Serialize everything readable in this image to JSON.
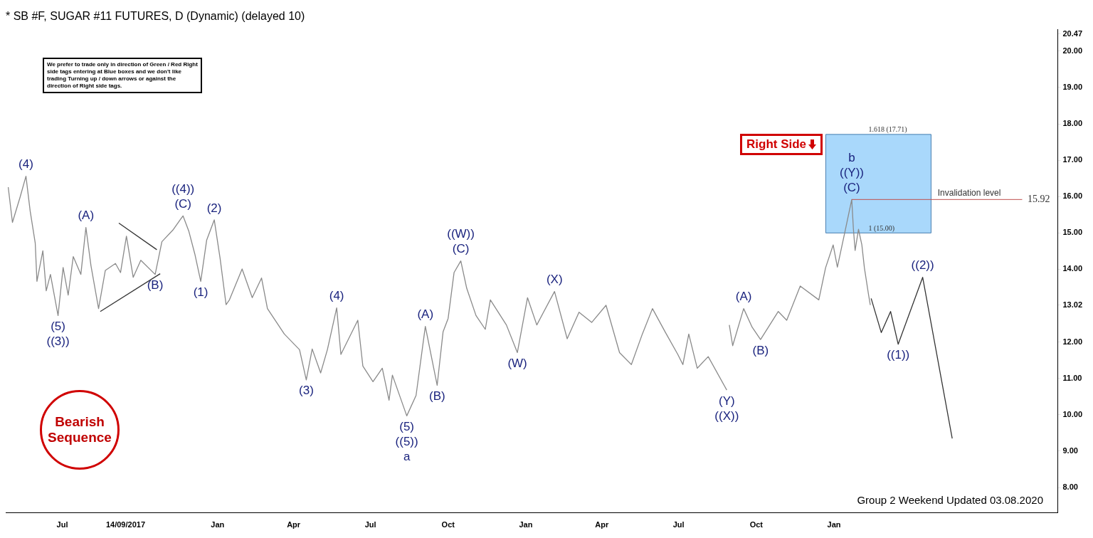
{
  "chart_data": {
    "type": "line",
    "title": "* SB #F, SUGAR #11 FUTURES, D (Dynamic) (delayed 10)",
    "xlim": [
      "2017-04-25",
      "2020-09-22"
    ],
    "xticks": [
      {
        "value": "2017-07-01",
        "label": "Jul"
      },
      {
        "value": "2017-09-14",
        "label": "14/09/2017"
      },
      {
        "value": "2018-01-01",
        "label": "Jan"
      },
      {
        "value": "2018-04-01",
        "label": "Apr"
      },
      {
        "value": "2018-07-01",
        "label": "Jul"
      },
      {
        "value": "2018-10-01",
        "label": "Oct"
      },
      {
        "value": "2019-01-01",
        "label": "Jan"
      },
      {
        "value": "2019-04-01",
        "label": "Apr"
      },
      {
        "value": "2019-07-01",
        "label": "Jul"
      },
      {
        "value": "2019-10-01",
        "label": "Oct"
      },
      {
        "value": "2020-01-01",
        "label": "Jan"
      }
    ],
    "ylim": [
      7.3,
      20.6
    ],
    "yticks": [
      {
        "value": 8,
        "label": "8.00"
      },
      {
        "value": 9,
        "label": "9.00"
      },
      {
        "value": 10,
        "label": "10.00"
      },
      {
        "value": 11,
        "label": "11.00"
      },
      {
        "value": 12,
        "label": "12.00"
      },
      {
        "value": 13.02,
        "label": "13.02"
      },
      {
        "value": 14,
        "label": "14.00"
      },
      {
        "value": 15,
        "label": "15.00"
      },
      {
        "value": 16,
        "label": "16.00"
      },
      {
        "value": 17,
        "label": "17.00"
      },
      {
        "value": 18,
        "label": "18.00"
      },
      {
        "value": 19,
        "label": "19.00"
      },
      {
        "value": 20,
        "label": "20.00"
      },
      {
        "value": 20.47,
        "label": "20.47"
      }
    ],
    "grid": false,
    "legend": false,
    "marker": "none",
    "line_style": "solid",
    "series": [
      {
        "color": "#8a8a8a",
        "x": [
          "2017-04-28",
          "2017-05-03",
          "2017-05-12",
          "2017-05-19",
          "2017-05-24",
          "2017-05-30",
          "2017-06-01",
          "2017-06-08",
          "2017-06-12",
          "2017-06-17",
          "2017-06-26",
          "2017-07-02",
          "2017-07-08",
          "2017-07-14",
          "2017-07-23",
          "2017-07-29",
          "2017-08-04",
          "2017-08-13",
          "2017-08-21",
          "2017-09-02",
          "2017-09-08",
          "2017-09-15",
          "2017-09-23",
          "2017-10-02",
          "2017-10-19",
          "2017-10-27",
          "2017-11-09",
          "2017-11-21",
          "2017-11-28",
          "2017-12-05",
          "2017-12-12",
          "2017-12-19",
          "2017-12-28",
          "2018-01-04",
          "2018-01-11",
          "2018-01-15",
          "2018-01-30",
          "2018-02-11",
          "2018-02-22",
          "2018-03-01",
          "2018-03-21",
          "2018-04-08",
          "2018-04-16",
          "2018-04-23",
          "2018-05-03",
          "2018-05-11",
          "2018-05-22",
          "2018-05-27",
          "2018-06-16",
          "2018-06-22",
          "2018-07-04",
          "2018-07-15",
          "2018-07-23",
          "2018-07-27",
          "2018-08-13",
          "2018-08-24",
          "2018-09-04",
          "2018-09-18",
          "2018-09-25",
          "2018-10-01",
          "2018-10-08",
          "2018-10-16",
          "2018-10-23",
          "2018-11-03",
          "2018-11-14",
          "2018-11-20",
          "2018-12-09",
          "2018-12-22",
          "2019-01-03",
          "2019-01-14",
          "2019-02-04",
          "2019-02-19",
          "2019-03-05",
          "2019-03-20",
          "2019-04-06",
          "2019-04-22",
          "2019-05-06",
          "2019-05-19",
          "2019-05-31",
          "2019-06-15",
          "2019-06-30",
          "2019-07-06",
          "2019-07-13",
          "2019-07-23",
          "2019-08-05",
          "2019-08-27",
          "2019-08-28",
          "2019-08-30",
          "2019-09-03",
          "2019-09-16",
          "2019-09-26",
          "2019-10-06",
          "2019-10-27",
          "2019-11-06",
          "2019-11-22",
          "2019-12-14",
          "2019-12-22",
          "2019-12-31",
          "2020-01-05",
          "2020-01-14",
          "2020-01-22",
          "2020-01-24",
          "2020-01-26",
          "2020-01-30",
          "2020-02-03",
          "2020-02-06",
          "2020-02-11",
          "2020-02-13"
        ],
        "values": [
          16.26,
          15.29,
          15.98,
          16.56,
          15.6,
          14.72,
          13.67,
          14.51,
          13.41,
          13.86,
          12.73,
          14.05,
          13.29,
          14.35,
          13.86,
          15.15,
          14.1,
          12.92,
          13.97,
          14.16,
          13.91,
          14.91,
          13.78,
          14.25,
          13.86,
          14.76,
          15.08,
          15.47,
          15.04,
          14.42,
          13.67,
          14.8,
          15.36,
          14.29,
          13.03,
          13.16,
          14.01,
          13.22,
          13.76,
          12.92,
          12.22,
          11.79,
          10.96,
          11.81,
          11.15,
          11.79,
          12.94,
          11.66,
          12.6,
          11.34,
          10.91,
          11.28,
          10.4,
          11.09,
          9.97,
          10.53,
          12.43,
          10.81,
          12.28,
          12.65,
          13.91,
          14.23,
          13.48,
          12.73,
          12.35,
          13.16,
          12.47,
          11.71,
          13.22,
          12.47,
          13.39,
          12.09,
          12.82,
          12.54,
          13.01,
          11.71,
          11.38,
          12.22,
          12.92,
          12.28,
          11.66,
          11.38,
          12.22,
          11.28,
          11.6,
          10.68,
          null,
          12.47,
          11.9,
          12.92,
          12.41,
          12.07,
          12.84,
          12.6,
          13.54,
          13.16,
          14.04,
          14.67,
          14.06,
          15.04,
          15.92,
          15.1,
          14.52,
          15.1,
          14.67,
          14.04,
          13.29,
          13.02
        ]
      },
      {
        "color": "#333333",
        "x": [
          "2020-02-14",
          "2020-02-26",
          "2020-03-08",
          "2020-03-17",
          "2020-04-15",
          "2020-05-20"
        ],
        "values": [
          13.2,
          12.26,
          12.84,
          11.94,
          13.78,
          9.35
        ]
      },
      {
        "color": "#333333",
        "x": [
          "2017-09-06",
          "2017-10-21"
        ],
        "values": [
          15.27,
          14.54
        ]
      },
      {
        "color": "#333333",
        "x": [
          "2017-08-15",
          "2017-10-25"
        ],
        "values": [
          12.84,
          13.88
        ]
      }
    ],
    "bands": [
      {
        "axis": "y",
        "from": 15.0,
        "to": 17.71,
        "color": "#a9d8fb"
      }
    ],
    "ref_lines": [
      {
        "axis": "y",
        "value": 15.92,
        "label": "Invalidation level",
        "color": "#c0504d"
      }
    ],
    "annotations": [
      "We prefer to trade only in direction of Green / Red Right side tags entering at Blue boxes and we don't like trading Turning up / down arrows or against the direction of Right side tags.",
      "Right Side",
      "Bearish Sequence",
      "Group 2 Weekend Updated 03.08.2020",
      "15.92",
      {
        "text": "1.618 (17.71)",
        "y": 17.71
      },
      {
        "text": "1 (15.00)",
        "y": 15.0
      },
      {
        "text": "(4)",
        "x": "2017-05-19",
        "y": 16.56
      },
      {
        "text": "(5)",
        "x": "2017-06-26",
        "y": 12.73
      },
      {
        "text": "((3))",
        "x": "2017-06-26",
        "y": 12.73
      },
      {
        "text": "(A)",
        "x": "2017-07-29",
        "y": 15.15
      },
      {
        "text": "(B)",
        "x": "2017-10-19",
        "y": 13.86
      },
      {
        "text": "(C)",
        "x": "2017-11-21",
        "y": 15.47
      },
      {
        "text": "((4))",
        "x": "2017-11-21",
        "y": 15.47
      },
      {
        "text": "(1)",
        "x": "2017-12-12",
        "y": 13.67
      },
      {
        "text": "(2)",
        "x": "2017-12-28",
        "y": 15.36
      },
      {
        "text": "(3)",
        "x": "2018-04-16",
        "y": 10.96
      },
      {
        "text": "(4)",
        "x": "2018-05-22",
        "y": 12.94
      },
      {
        "text": "(5)",
        "x": "2018-08-13",
        "y": 9.97
      },
      {
        "text": "((5))",
        "x": "2018-08-13",
        "y": 9.97
      },
      {
        "text": "a",
        "x": "2018-08-13",
        "y": 9.97
      },
      {
        "text": "(A)",
        "x": "2018-09-04",
        "y": 12.43
      },
      {
        "text": "(B)",
        "x": "2018-09-18",
        "y": 10.81
      },
      {
        "text": "(C)",
        "x": "2018-10-16",
        "y": 14.23
      },
      {
        "text": "((W))",
        "x": "2018-10-16",
        "y": 14.23
      },
      {
        "text": "(W)",
        "x": "2018-12-22",
        "y": 11.71
      },
      {
        "text": "(X)",
        "x": "2019-02-04",
        "y": 13.39
      },
      {
        "text": "(Y)",
        "x": "2019-08-27",
        "y": 10.68
      },
      {
        "text": "((X))",
        "x": "2019-08-27",
        "y": 10.68
      },
      {
        "text": "(A)",
        "x": "2019-09-16",
        "y": 12.92
      },
      {
        "text": "(B)",
        "x": "2019-10-06",
        "y": 12.07
      },
      {
        "text": "(C)",
        "x": "2020-01-22",
        "y": 15.92
      },
      {
        "text": "((Y))",
        "x": "2020-01-22",
        "y": 15.92
      },
      {
        "text": "b",
        "x": "2020-01-22",
        "y": 15.92
      },
      {
        "text": "((1))",
        "x": "2020-03-17",
        "y": 11.94
      },
      {
        "text": "((2))",
        "x": "2020-04-15",
        "y": 13.78
      }
    ]
  }
}
